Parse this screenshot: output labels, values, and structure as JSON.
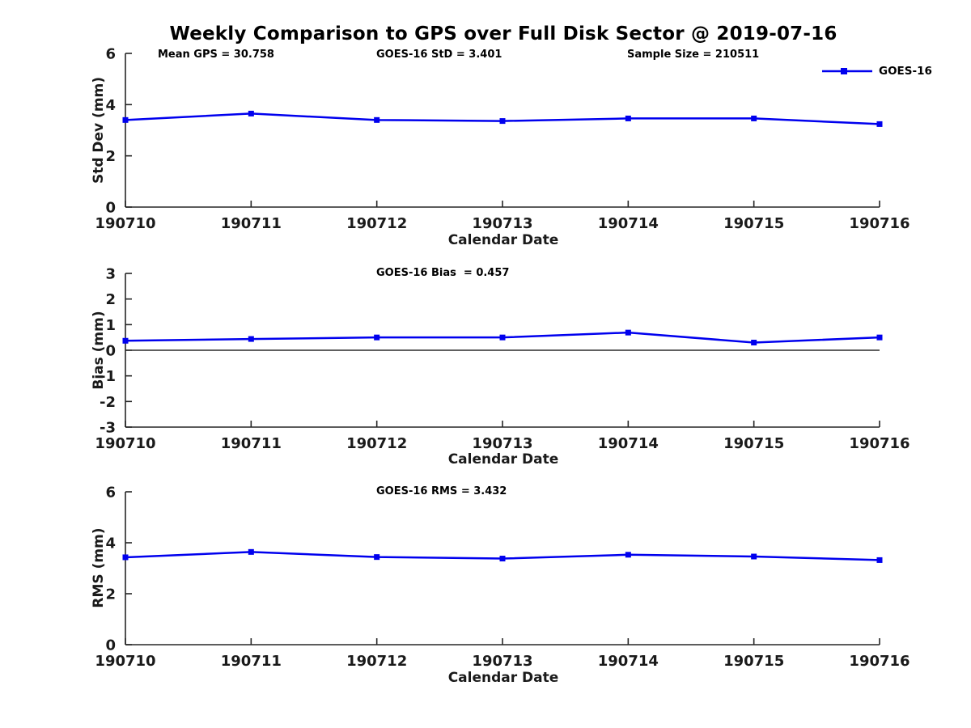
{
  "figure": {
    "title": "Weekly Comparison to GPS over Full Disk Sector @ 2019-07-16",
    "background_color": "#ffffff",
    "text_color": "#1a1a1a",
    "axis_color": "#262626"
  },
  "legend": {
    "label": "GOES-16",
    "line_color": "#0000ee",
    "marker": "filled-square",
    "position": "top-right-above-first-subplot"
  },
  "chart_data": [
    {
      "type": "line",
      "title": "",
      "ylabel": "Std Dev (mm)",
      "xlabel": "Calendar Date",
      "categories": [
        "190710",
        "190711",
        "190712",
        "190713",
        "190714",
        "190715",
        "190716"
      ],
      "series": [
        {
          "name": "GOES-16",
          "color": "#0000ee",
          "marker": "square",
          "values": [
            3.4,
            3.65,
            3.4,
            3.36,
            3.46,
            3.46,
            3.24
          ]
        }
      ],
      "ylim": [
        0,
        6
      ],
      "yticks": [
        0,
        2,
        4,
        6
      ],
      "grid": false,
      "zero_line": false,
      "annotations": [
        {
          "text": "Mean GPS = 30.758"
        },
        {
          "text": "GOES-16 StD = 3.401"
        },
        {
          "text": "Sample Size = 210511"
        }
      ]
    },
    {
      "type": "line",
      "title": "",
      "ylabel": "Bias (mm)",
      "xlabel": "Calendar Date",
      "categories": [
        "190710",
        "190711",
        "190712",
        "190713",
        "190714",
        "190715",
        "190716"
      ],
      "series": [
        {
          "name": "GOES-16",
          "color": "#0000ee",
          "marker": "square",
          "values": [
            0.37,
            0.44,
            0.5,
            0.5,
            0.69,
            0.3,
            0.5
          ]
        }
      ],
      "ylim": [
        -3,
        3
      ],
      "yticks": [
        -3,
        -2,
        -1,
        0,
        1,
        2,
        3
      ],
      "grid": false,
      "zero_line": true,
      "annotations": [
        {
          "text": "GOES-16 Bias  = 0.457"
        }
      ]
    },
    {
      "type": "line",
      "title": "",
      "ylabel": "RMS (mm)",
      "xlabel": "Calendar Date",
      "categories": [
        "190710",
        "190711",
        "190712",
        "190713",
        "190714",
        "190715",
        "190716"
      ],
      "series": [
        {
          "name": "GOES-16",
          "color": "#0000ee",
          "marker": "square",
          "values": [
            3.43,
            3.64,
            3.44,
            3.38,
            3.53,
            3.46,
            3.32
          ]
        }
      ],
      "ylim": [
        0,
        6
      ],
      "yticks": [
        0,
        2,
        4,
        6
      ],
      "grid": false,
      "zero_line": false,
      "annotations": [
        {
          "text": "GOES-16 RMS = 3.432"
        }
      ]
    }
  ]
}
